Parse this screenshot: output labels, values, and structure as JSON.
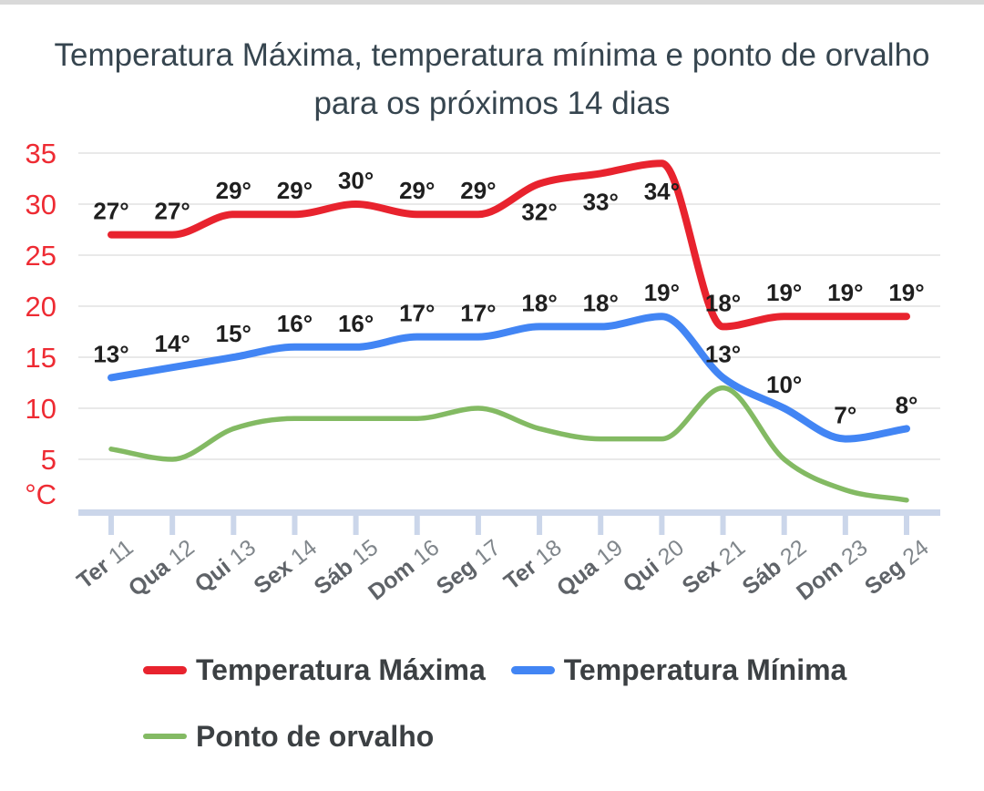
{
  "title": {
    "line1": "Temperatura Máxima, temperatura mínima e ponto de orvalho",
    "line2": "para os próximos 14 dias"
  },
  "chart_data": {
    "type": "line",
    "categories": [
      "Ter 11",
      "Qua 12",
      "Qui 13",
      "Sex 14",
      "Sáb 15",
      "Dom 16",
      "Seg 17",
      "Ter 18",
      "Qua 19",
      "Qui 20",
      "Sex 21",
      "Sáb 22",
      "Dom 23",
      "Seg 24"
    ],
    "series": [
      {
        "name": "Temperatura Máxima",
        "color": "#e8232e",
        "values": [
          27,
          27,
          29,
          29,
          30,
          29,
          29,
          32,
          33,
          34,
          18,
          19,
          19,
          19
        ],
        "point_labels": [
          "27°",
          "27°",
          "29°",
          "29°",
          "30°",
          "29°",
          "29°",
          "32°",
          "33°",
          "34°",
          "18°",
          "19°",
          "19°",
          "19°"
        ]
      },
      {
        "name": "Temperatura Mínima",
        "color": "#4285f4",
        "values": [
          13,
          14,
          15,
          16,
          16,
          17,
          17,
          18,
          18,
          19,
          13,
          10,
          7,
          8
        ],
        "point_labels": [
          "13°",
          "14°",
          "15°",
          "16°",
          "16°",
          "17°",
          "17°",
          "18°",
          "18°",
          "19°",
          "13°",
          "10°",
          "7°",
          "8°"
        ]
      },
      {
        "name": "Ponto de orvalho",
        "color": "#83ba63",
        "values": [
          6,
          5,
          8,
          9,
          9,
          9,
          10,
          8,
          7,
          7,
          12,
          5,
          2,
          1
        ],
        "point_labels": []
      }
    ],
    "yticks": [
      "35",
      "30",
      "25",
      "20",
      "15",
      "10",
      "5"
    ],
    "y_unit": "°C",
    "ylim": [
      0,
      35
    ],
    "grid": true,
    "legend_position": "bottom"
  },
  "colors": {
    "max_temp_red": "#e8232e",
    "min_temp_blue": "#4285f4",
    "dew_point_green": "#83ba63",
    "axis_label_red": "#ee2b33",
    "grid_line": "#e9e9e9",
    "axis_line": "#cbd6ea",
    "title_text": "#36454f",
    "point_label": "#1f1f1f",
    "x_label_day": "#5f6368",
    "x_label_num": "#80868b",
    "legend_text": "#3c4043",
    "top_bar": "#d9d9d9"
  }
}
